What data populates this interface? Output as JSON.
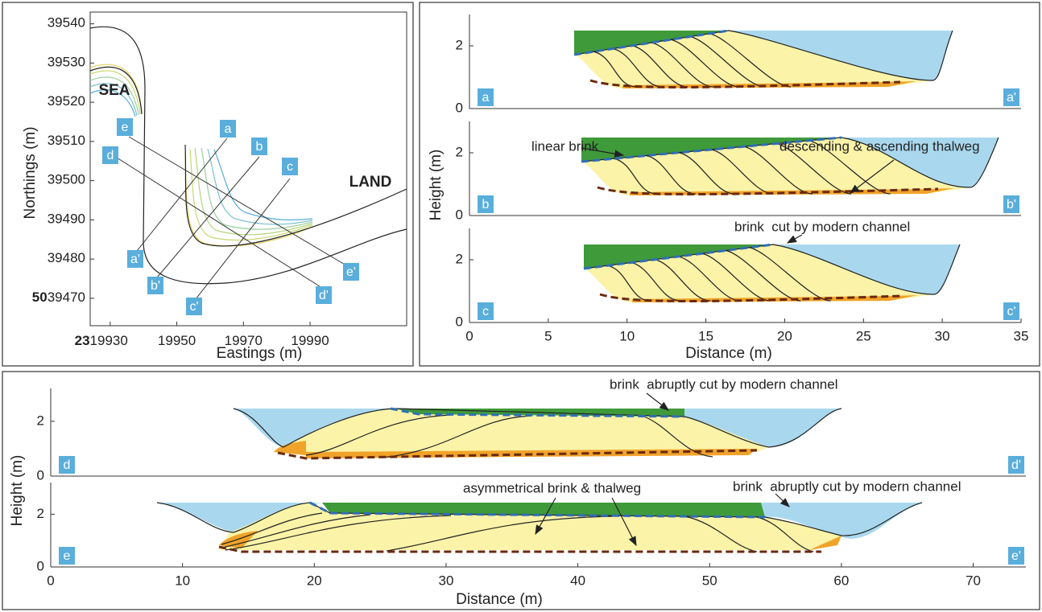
{
  "map": {
    "xlabel": "Eastings (m)",
    "ylabel": "Northings (m)",
    "x_prefix": "23",
    "y_prefix": "50",
    "xlim": [
      19924,
      20019
    ],
    "xticks": [
      19930,
      19950,
      19970,
      19990
    ],
    "ylim": [
      39463,
      39543
    ],
    "yticks": [
      39470,
      39480,
      39490,
      39500,
      39510,
      39520,
      39530,
      39540
    ],
    "sea_label": "SEA",
    "land_label": "LAND"
  },
  "sections": [
    {
      "start": "a",
      "end": "a'"
    },
    {
      "start": "b",
      "end": "b'"
    },
    {
      "start": "c",
      "end": "c'"
    },
    {
      "start": "d",
      "end": "d'"
    },
    {
      "start": "e",
      "end": "e'"
    }
  ],
  "profiles_abc": {
    "xlabel": "Distance (m)",
    "ylabel": "Height (m)",
    "xlim": [
      0,
      35
    ],
    "xticks": [
      0,
      5,
      10,
      15,
      20,
      25,
      30,
      35
    ],
    "ylim": [
      0,
      3
    ],
    "yticks": [
      0,
      2
    ],
    "annotations": [
      "linear brink",
      "descending & ascending thalweg",
      "brink  cut by modern channel"
    ]
  },
  "profiles_de": {
    "xlabel": "Distance (m)",
    "ylabel": "Height (m)",
    "xlim": [
      0,
      74
    ],
    "xticks": [
      0,
      10,
      20,
      30,
      40,
      50,
      60,
      70
    ],
    "ylim": [
      0,
      3.2
    ],
    "yticks": [
      0,
      2
    ],
    "annotations": [
      "brink  abruptly cut by modern channel",
      "asymmetrical brink & thalweg",
      "brink  abruptly cut by modern channel"
    ]
  }
}
